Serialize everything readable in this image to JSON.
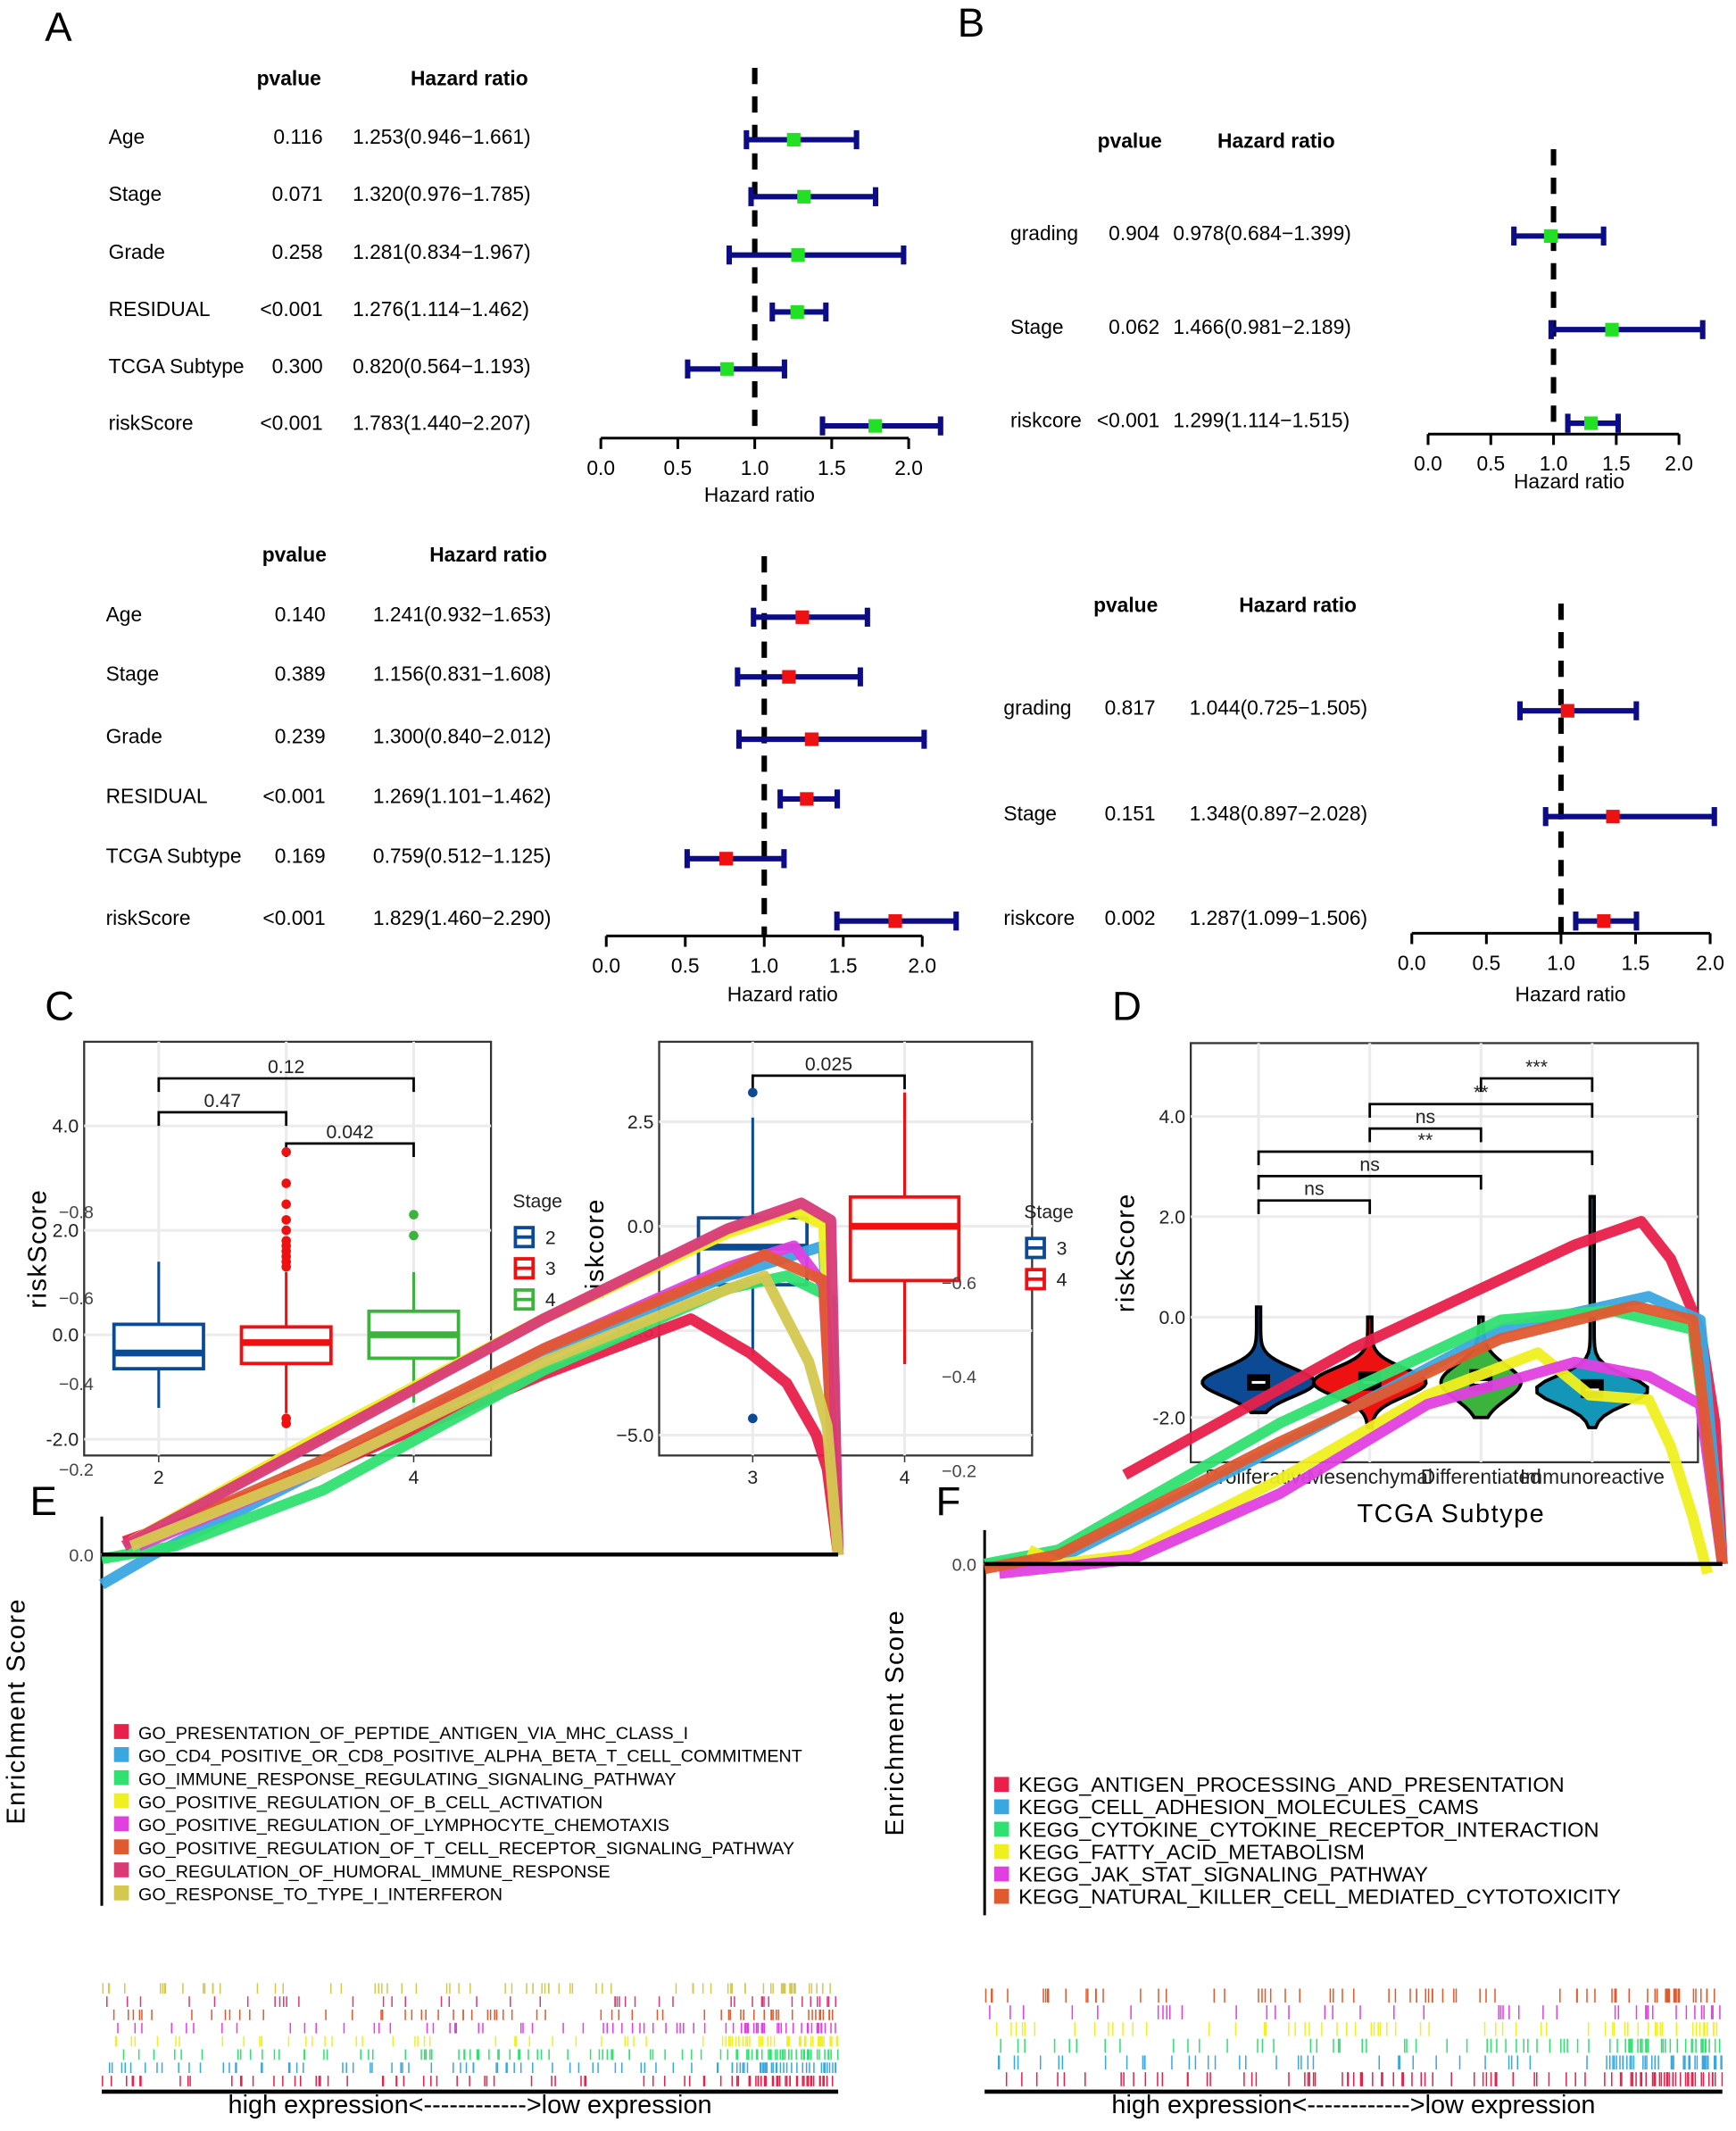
{
  "panels": {
    "A": "A",
    "B": "B",
    "C": "C",
    "D": "D",
    "E": "E",
    "F": "F"
  },
  "forest_colors": {
    "bar": "#0c0c86",
    "point_top": "#22e022",
    "point_bottom": "#ee1111"
  },
  "chart_data": [
    {
      "id": "A-top",
      "type": "forest",
      "header_pvalue": "pvalue",
      "header_hr": "Hazard ratio",
      "xlabel": "Hazard ratio",
      "xticks": [
        "0.0",
        "0.5",
        "1.0",
        "1.5",
        "2.0"
      ],
      "xlim": [
        0,
        2
      ],
      "reference": 1.0,
      "rows": [
        {
          "label": "Age",
          "pvalue": "0.116",
          "hr_text": "1.253(0.946−1.661)",
          "hr": 1.253,
          "lo": 0.946,
          "hi": 1.661
        },
        {
          "label": "Stage",
          "pvalue": "0.071",
          "hr_text": "1.320(0.976−1.785)",
          "hr": 1.32,
          "lo": 0.976,
          "hi": 1.785
        },
        {
          "label": "Grade",
          "pvalue": "0.258",
          "hr_text": "1.281(0.834−1.967)",
          "hr": 1.281,
          "lo": 0.834,
          "hi": 1.967
        },
        {
          "label": "RESIDUAL",
          "pvalue": "<0.001",
          "hr_text": "1.276(1.114−1.462)",
          "hr": 1.276,
          "lo": 1.114,
          "hi": 1.462
        },
        {
          "label": "TCGA Subtype",
          "pvalue": "0.300",
          "hr_text": "0.820(0.564−1.193)",
          "hr": 0.82,
          "lo": 0.564,
          "hi": 1.193
        },
        {
          "label": "riskScore",
          "pvalue": "<0.001",
          "hr_text": "1.783(1.440−2.207)",
          "hr": 1.783,
          "lo": 1.44,
          "hi": 2.207
        }
      ]
    },
    {
      "id": "A-bottom",
      "type": "forest",
      "header_pvalue": "pvalue",
      "header_hr": "Hazard ratio",
      "xlabel": "Hazard ratio",
      "xticks": [
        "0.0",
        "0.5",
        "1.0",
        "1.5",
        "2.0"
      ],
      "xlim": [
        0,
        2
      ],
      "reference": 1.0,
      "rows": [
        {
          "label": "Age",
          "pvalue": "0.140",
          "hr_text": "1.241(0.932−1.653)",
          "hr": 1.241,
          "lo": 0.932,
          "hi": 1.653
        },
        {
          "label": "Stage",
          "pvalue": "0.389",
          "hr_text": "1.156(0.831−1.608)",
          "hr": 1.156,
          "lo": 0.831,
          "hi": 1.608
        },
        {
          "label": "Grade",
          "pvalue": "0.239",
          "hr_text": "1.300(0.840−2.012)",
          "hr": 1.3,
          "lo": 0.84,
          "hi": 2.012
        },
        {
          "label": "RESIDUAL",
          "pvalue": "<0.001",
          "hr_text": "1.269(1.101−1.462)",
          "hr": 1.269,
          "lo": 1.101,
          "hi": 1.462
        },
        {
          "label": "TCGA Subtype",
          "pvalue": "0.169",
          "hr_text": "0.759(0.512−1.125)",
          "hr": 0.759,
          "lo": 0.512,
          "hi": 1.125
        },
        {
          "label": "riskScore",
          "pvalue": "<0.001",
          "hr_text": "1.829(1.460−2.290)",
          "hr": 1.829,
          "lo": 1.46,
          "hi": 2.29
        }
      ]
    },
    {
      "id": "B-top",
      "type": "forest",
      "header_pvalue": "pvalue",
      "header_hr": "Hazard ratio",
      "xlabel": "Hazard ratio",
      "xticks": [
        "0.0",
        "0.5",
        "1.0",
        "1.5",
        "2.0"
      ],
      "xlim": [
        0,
        2
      ],
      "reference": 1.0,
      "rows": [
        {
          "label": "grading",
          "pvalue": "0.904",
          "hr_text": "0.978(0.684−1.399)",
          "hr": 0.978,
          "lo": 0.684,
          "hi": 1.399
        },
        {
          "label": "Stage",
          "pvalue": "0.062",
          "hr_text": "1.466(0.981−2.189)",
          "hr": 1.466,
          "lo": 0.981,
          "hi": 2.189
        },
        {
          "label": "riskcore",
          "pvalue": "<0.001",
          "hr_text": "1.299(1.114−1.515)",
          "hr": 1.299,
          "lo": 1.114,
          "hi": 1.515
        }
      ]
    },
    {
      "id": "B-bottom",
      "type": "forest",
      "header_pvalue": "pvalue",
      "header_hr": "Hazard ratio",
      "xlabel": "Hazard ratio",
      "xticks": [
        "0.0",
        "0.5",
        "1.0",
        "1.5",
        "2.0"
      ],
      "xlim": [
        0,
        2
      ],
      "reference": 1.0,
      "rows": [
        {
          "label": "grading",
          "pvalue": "0.817",
          "hr_text": "1.044(0.725−1.505)",
          "hr": 1.044,
          "lo": 0.725,
          "hi": 1.505
        },
        {
          "label": "Stage",
          "pvalue": "0.151",
          "hr_text": "1.348(0.897−2.028)",
          "hr": 1.348,
          "lo": 0.897,
          "hi": 2.028
        },
        {
          "label": "riskcore",
          "pvalue": "0.002",
          "hr_text": "1.287(1.099−1.506)",
          "hr": 1.287,
          "lo": 1.099,
          "hi": 1.506
        }
      ]
    },
    {
      "id": "C-left",
      "type": "box",
      "ylabel": "riskScore",
      "yticks": [
        "4.0",
        "2.0",
        "0.0",
        "-2.0"
      ],
      "ylim": [
        -2.2,
        5.0
      ],
      "legend_title": "Stage",
      "grid": true,
      "groups": [
        {
          "name": "2",
          "color": "#0d4a94",
          "median": -0.35,
          "q1": -0.65,
          "q3": 0.2,
          "lo": -1.4,
          "hi": 1.4,
          "outliers": []
        },
        {
          "name": "3",
          "color": "#ee1111",
          "median": -0.15,
          "q1": -0.55,
          "q3": 0.15,
          "lo": -1.5,
          "hi": 1.2,
          "outliers": [
            3.5,
            2.9,
            2.5,
            2.2,
            2.0,
            1.8,
            1.7,
            1.6,
            1.5,
            1.4,
            1.3,
            -1.6,
            -1.7
          ]
        },
        {
          "name": "4",
          "color": "#3cb33c",
          "median": 0.0,
          "q1": -0.45,
          "q3": 0.45,
          "lo": -1.3,
          "hi": 1.2,
          "outliers": [
            1.9,
            2.3
          ]
        }
      ],
      "comparisons": [
        {
          "a": 0,
          "b": 2,
          "label": "0.12"
        },
        {
          "a": 0,
          "b": 1,
          "label": "0.47"
        },
        {
          "a": 1,
          "b": 2,
          "label": "0.042"
        }
      ]
    },
    {
      "id": "C-right",
      "type": "box",
      "ylabel": "riskcore",
      "yticks": [
        "2.5",
        "0.0",
        "−2.5",
        "−5.0"
      ],
      "ylim": [
        -5.5,
        4.4
      ],
      "legend_title": "Stage",
      "grid": true,
      "groups": [
        {
          "name": "3",
          "color": "#0d4a94",
          "median": -0.5,
          "q1": -1.4,
          "q3": 0.2,
          "lo": -3.1,
          "hi": 2.6,
          "outliers": [
            3.2,
            -4.6
          ]
        },
        {
          "name": "4",
          "color": "#ee1111",
          "median": 0.0,
          "q1": -1.3,
          "q3": 0.7,
          "lo": -3.3,
          "hi": 3.2,
          "outliers": []
        }
      ],
      "comparisons": [
        {
          "a": 0,
          "b": 1,
          "label": "0.025"
        }
      ]
    },
    {
      "id": "D",
      "type": "violin",
      "ylabel": "riskScore",
      "xlabel": "TCGA Subtype",
      "yticks": [
        "4.0",
        "2.0",
        "0.0",
        "-2.0"
      ],
      "ylim": [
        -2.8,
        5.5
      ],
      "grid": true,
      "groups": [
        {
          "name": "Proliferative",
          "color": "#0d4a94",
          "median": -1.3,
          "q1": -1.45,
          "q3": -1.15,
          "min": -1.9,
          "max": 0.2
        },
        {
          "name": "Mesenchymal",
          "color": "#ee1111",
          "median": -1.3,
          "q1": -1.45,
          "q3": -1.1,
          "min": -2.2,
          "max": 0.0
        },
        {
          "name": "Differentiated",
          "color": "#3cb33c",
          "median": -1.3,
          "q1": -1.45,
          "q3": -1.05,
          "min": -2.0,
          "max": 0.0
        },
        {
          "name": "Immunoreactive",
          "color": "#1396b8",
          "median": -1.45,
          "q1": -1.6,
          "q3": -1.25,
          "min": -2.2,
          "max": 2.4
        }
      ],
      "comparisons": [
        {
          "a": 2,
          "b": 3,
          "label": "***"
        },
        {
          "a": 1,
          "b": 3,
          "label": "**"
        },
        {
          "a": 1,
          "b": 2,
          "label": "ns"
        },
        {
          "a": 0,
          "b": 3,
          "label": "**"
        },
        {
          "a": 0,
          "b": 2,
          "label": "ns"
        },
        {
          "a": 0,
          "b": 1,
          "label": "ns"
        }
      ]
    },
    {
      "id": "E",
      "type": "line",
      "ylabel": "Enrichment Score",
      "xlabel": "high expression<------------>low expression",
      "yticks": [
        "0.0",
        "−0.2",
        "−0.4",
        "−0.6",
        "−0.8"
      ],
      "ylim": [
        -0.85,
        0.08
      ],
      "series": [
        {
          "name": "GO_PRESENTATION_OF_PEPTIDE_ANTIGEN_VIA_MHC_CLASS_I",
          "color": "#e8204a",
          "points": [
            [
              0.03,
              -0.03
            ],
            [
              0.3,
              -0.2
            ],
            [
              0.6,
              -0.42
            ],
            [
              0.8,
              -0.55
            ],
            [
              0.88,
              -0.47
            ],
            [
              0.93,
              -0.4
            ],
            [
              0.97,
              -0.28
            ],
            [
              0.985,
              -0.2
            ],
            [
              1.0,
              0.0
            ]
          ]
        },
        {
          "name": "GO_CD4_POSITIVE_OR_CD8_POSITIVE_ALPHA_BETA_T_CELL_COMMITMENT",
          "color": "#3aa8e0",
          "points": [
            [
              0.0,
              0.07
            ],
            [
              0.07,
              0.0
            ],
            [
              0.3,
              -0.2
            ],
            [
              0.6,
              -0.47
            ],
            [
              0.85,
              -0.65
            ],
            [
              0.98,
              -0.72
            ],
            [
              1.0,
              0.0
            ]
          ]
        },
        {
          "name": "GO_IMMUNE_RESPONSE_REGULATING_SIGNALING_PATHWAY",
          "color": "#30e070",
          "points": [
            [
              0.0,
              0.01
            ],
            [
              0.1,
              -0.02
            ],
            [
              0.3,
              -0.15
            ],
            [
              0.6,
              -0.43
            ],
            [
              0.85,
              -0.62
            ],
            [
              0.93,
              -0.65
            ],
            [
              0.99,
              -0.6
            ],
            [
              1.0,
              0.0
            ]
          ]
        },
        {
          "name": "GO_POSITIVE_REGULATION_OF_B_CELL_ACTIVATION",
          "color": "#f0f020",
          "points": [
            [
              0.04,
              -0.03
            ],
            [
              0.3,
              -0.28
            ],
            [
              0.6,
              -0.55
            ],
            [
              0.85,
              -0.75
            ],
            [
              0.94,
              -0.8
            ],
            [
              0.98,
              -0.77
            ],
            [
              1.0,
              0.0
            ]
          ]
        },
        {
          "name": "GO_POSITIVE_REGULATION_OF_LYMPHOCYTE_CHEMOTAXIS",
          "color": "#e040e0",
          "points": [
            [
              0.05,
              -0.02
            ],
            [
              0.3,
              -0.2
            ],
            [
              0.6,
              -0.48
            ],
            [
              0.85,
              -0.67
            ],
            [
              0.94,
              -0.72
            ],
            [
              0.98,
              -0.63
            ],
            [
              1.0,
              0.0
            ]
          ]
        },
        {
          "name": "GO_POSITIVE_REGULATION_OF_T_CELL_RECEPTOR_SIGNALING_PATHWAY",
          "color": "#e05a30",
          "points": [
            [
              0.05,
              -0.03
            ],
            [
              0.3,
              -0.22
            ],
            [
              0.6,
              -0.48
            ],
            [
              0.85,
              -0.66
            ],
            [
              0.9,
              -0.7
            ],
            [
              0.98,
              -0.64
            ],
            [
              1.0,
              0.0
            ]
          ]
        },
        {
          "name": "GO_REGULATION_OF_HUMORAL_IMMUNE_RESPONSE",
          "color": "#d83a78",
          "points": [
            [
              0.03,
              -0.02
            ],
            [
              0.3,
              -0.27
            ],
            [
              0.6,
              -0.55
            ],
            [
              0.85,
              -0.76
            ],
            [
              0.95,
              -0.82
            ],
            [
              0.99,
              -0.78
            ],
            [
              1.0,
              0.0
            ]
          ]
        },
        {
          "name": "GO_RESPONSE_TO_TYPE_I_INTERFERON",
          "color": "#d4c850",
          "points": [
            [
              0.04,
              -0.02
            ],
            [
              0.3,
              -0.2
            ],
            [
              0.6,
              -0.45
            ],
            [
              0.82,
              -0.6
            ],
            [
              0.9,
              -0.65
            ],
            [
              0.96,
              -0.45
            ],
            [
              0.985,
              -0.3
            ],
            [
              1.0,
              0.0
            ]
          ]
        }
      ]
    },
    {
      "id": "F",
      "type": "line",
      "ylabel": "Enrichment Score",
      "xlabel": "high expression<------------>low expression",
      "yticks": [
        "0.0",
        "−0.2",
        "−0.4",
        "−0.6"
      ],
      "ylim": [
        -0.76,
        0.05
      ],
      "series": [
        {
          "name": "KEGG_ANTIGEN_PROCESSING_AND_PRESENTATION",
          "color": "#e8204a",
          "points": [
            [
              0.19,
              -0.19
            ],
            [
              0.5,
              -0.46
            ],
            [
              0.8,
              -0.68
            ],
            [
              0.89,
              -0.73
            ],
            [
              0.93,
              -0.65
            ],
            [
              0.97,
              -0.5
            ],
            [
              0.99,
              -0.3
            ],
            [
              1.0,
              0.0
            ]
          ]
        },
        {
          "name": "KEGG_CELL_ADHESION_MOLECULES_CAMS",
          "color": "#3aa8e0",
          "points": [
            [
              0.0,
              0.0
            ],
            [
              0.1,
              -0.01
            ],
            [
              0.4,
              -0.25
            ],
            [
              0.7,
              -0.5
            ],
            [
              0.9,
              -0.57
            ],
            [
              0.97,
              -0.52
            ],
            [
              1.0,
              0.0
            ]
          ]
        },
        {
          "name": "KEGG_CYTOKINE_CYTOKINE_RECEPTOR_INTERACTION",
          "color": "#30e070",
          "points": [
            [
              0.0,
              0.0
            ],
            [
              0.1,
              -0.03
            ],
            [
              0.4,
              -0.3
            ],
            [
              0.7,
              -0.52
            ],
            [
              0.85,
              -0.54
            ],
            [
              0.96,
              -0.5
            ],
            [
              1.0,
              0.0
            ]
          ]
        },
        {
          "name": "KEGG_FATTY_ACID_METABOLISM",
          "color": "#f0f020",
          "points": [
            [
              0.06,
              -0.03
            ],
            [
              0.1,
              0.0
            ],
            [
              0.2,
              -0.02
            ],
            [
              0.4,
              -0.18
            ],
            [
              0.6,
              -0.36
            ],
            [
              0.75,
              -0.45
            ],
            [
              0.82,
              -0.36
            ],
            [
              0.9,
              -0.35
            ],
            [
              0.93,
              -0.25
            ],
            [
              0.96,
              -0.1
            ],
            [
              0.98,
              0.02
            ]
          ]
        },
        {
          "name": "KEGG_JAK_STAT_SIGNALING_PATHWAY",
          "color": "#e040e0",
          "points": [
            [
              0.02,
              0.02
            ],
            [
              0.2,
              -0.01
            ],
            [
              0.4,
              -0.15
            ],
            [
              0.6,
              -0.34
            ],
            [
              0.8,
              -0.43
            ],
            [
              0.9,
              -0.4
            ],
            [
              0.97,
              -0.34
            ],
            [
              1.0,
              0.0
            ]
          ]
        },
        {
          "name": "KEGG_NATURAL_KILLER_CELL_MEDIATED_CYTOTOXICITY",
          "color": "#e05a30",
          "points": [
            [
              0.0,
              0.01
            ],
            [
              0.1,
              -0.02
            ],
            [
              0.4,
              -0.26
            ],
            [
              0.7,
              -0.48
            ],
            [
              0.88,
              -0.55
            ],
            [
              0.96,
              -0.52
            ],
            [
              1.0,
              0.0
            ]
          ]
        }
      ]
    }
  ]
}
